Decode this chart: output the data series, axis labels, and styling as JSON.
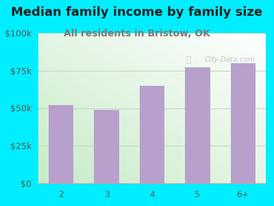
{
  "title": "Median family income by family size",
  "subtitle": "All residents in Bristow, OK",
  "categories": [
    "2",
    "3",
    "4",
    "5",
    "6+"
  ],
  "values": [
    52000,
    49000,
    65000,
    77000,
    80000
  ],
  "bar_color": "#b8a0cc",
  "background_outer": "#00eeff",
  "ylim": [
    0,
    100000
  ],
  "yticks": [
    0,
    25000,
    50000,
    75000,
    100000
  ],
  "ytick_labels": [
    "$0",
    "$25k",
    "$50k",
    "$75k",
    "$100k"
  ],
  "title_fontsize": 13,
  "subtitle_fontsize": 10,
  "title_color": "#222222",
  "subtitle_color": "#7a7a7a",
  "tick_color": "#555555",
  "grid_color": "#c0d8c0",
  "watermark": "City-Data.com"
}
